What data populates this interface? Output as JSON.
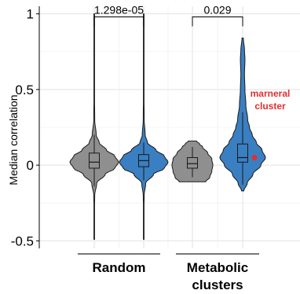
{
  "chart_data": {
    "type": "violin",
    "ylabel": "Median correlation",
    "ylim": [
      -0.55,
      1.05
    ],
    "yticks": [
      -0.5,
      0,
      0.5,
      1
    ],
    "ytick_labels": [
      "-0.5",
      "0",
      "0.5",
      "1"
    ],
    "grid": true,
    "colors": {
      "gray": "#8f8f8f",
      "blue": "#3a7fc1",
      "annotation": "#e03030"
    },
    "violins": [
      {
        "id": "random-gray",
        "group": "Random",
        "color": "#8f8f8f",
        "min": -0.49,
        "max": 1.0,
        "box": {
          "q1": -0.02,
          "median": 0.02,
          "q3": 0.08
        },
        "whisker": [
          -0.14,
          0.2
        ],
        "profile": [
          [
            -0.49,
            0.001
          ],
          [
            -0.4,
            0.003
          ],
          [
            -0.3,
            0.006
          ],
          [
            -0.2,
            0.02
          ],
          [
            -0.12,
            0.1
          ],
          [
            -0.06,
            0.45
          ],
          [
            -0.02,
            0.85
          ],
          [
            0.02,
            1.0
          ],
          [
            0.06,
            0.85
          ],
          [
            0.1,
            0.5
          ],
          [
            0.15,
            0.2
          ],
          [
            0.2,
            0.08
          ],
          [
            0.3,
            0.02
          ],
          [
            0.5,
            0.007
          ],
          [
            0.7,
            0.004
          ],
          [
            1.0,
            0.001
          ]
        ]
      },
      {
        "id": "random-blue",
        "group": "Random",
        "color": "#3a7fc1",
        "min": -0.49,
        "max": 1.0,
        "box": {
          "q1": -0.01,
          "median": 0.03,
          "q3": 0.07
        },
        "whisker": [
          -0.1,
          0.15
        ],
        "profile": [
          [
            -0.49,
            0.001
          ],
          [
            -0.4,
            0.003
          ],
          [
            -0.3,
            0.006
          ],
          [
            -0.2,
            0.02
          ],
          [
            -0.12,
            0.08
          ],
          [
            -0.06,
            0.4
          ],
          [
            -0.02,
            0.85
          ],
          [
            0.02,
            1.0
          ],
          [
            0.06,
            0.85
          ],
          [
            0.1,
            0.5
          ],
          [
            0.15,
            0.15
          ],
          [
            0.2,
            0.06
          ],
          [
            0.3,
            0.02
          ],
          [
            0.5,
            0.007
          ],
          [
            0.7,
            0.004
          ],
          [
            1.0,
            0.001
          ]
        ]
      },
      {
        "id": "metabolic-gray",
        "group": "Metabolic clusters",
        "color": "#8f8f8f",
        "min": -0.11,
        "max": 0.16,
        "box": {
          "q1": -0.02,
          "median": 0.01,
          "q3": 0.05
        },
        "whisker": [
          -0.08,
          0.12
        ],
        "profile": [
          [
            -0.11,
            0.65
          ],
          [
            -0.08,
            0.85
          ],
          [
            -0.04,
            0.95
          ],
          [
            0,
            1.0
          ],
          [
            0.04,
            0.95
          ],
          [
            0.08,
            0.75
          ],
          [
            0.12,
            0.5
          ],
          [
            0.14,
            0.35
          ],
          [
            0.16,
            0.2
          ]
        ]
      },
      {
        "id": "metabolic-blue",
        "group": "Metabolic clusters",
        "color": "#3a7fc1",
        "min": -0.17,
        "max": 0.84,
        "box": {
          "q1": 0.02,
          "median": 0.05,
          "q3": 0.14
        },
        "whisker": [
          -0.13,
          0.35
        ],
        "highlight": {
          "y": 0.05,
          "label": [
            "marneral",
            "cluster"
          ]
        },
        "profile": [
          [
            -0.17,
            0.05
          ],
          [
            -0.12,
            0.2
          ],
          [
            -0.06,
            0.45
          ],
          [
            0,
            0.8
          ],
          [
            0.05,
            1.0
          ],
          [
            0.1,
            0.85
          ],
          [
            0.15,
            0.6
          ],
          [
            0.2,
            0.42
          ],
          [
            0.25,
            0.3
          ],
          [
            0.3,
            0.22
          ],
          [
            0.4,
            0.14
          ],
          [
            0.5,
            0.1
          ],
          [
            0.6,
            0.08
          ],
          [
            0.7,
            0.1
          ],
          [
            0.76,
            0.08
          ],
          [
            0.84,
            0.03
          ]
        ]
      }
    ],
    "comparisons": [
      {
        "label": "1.298e-05",
        "from": "random-gray",
        "to": "random-blue",
        "y": 0.98
      },
      {
        "label": "0.029",
        "from": "metabolic-gray",
        "to": "metabolic-blue",
        "y": 0.98
      }
    ],
    "groups": [
      {
        "lines": [
          "Random"
        ],
        "members": [
          "random-gray",
          "random-blue"
        ]
      },
      {
        "lines": [
          "Metabolic",
          "clusters"
        ],
        "members": [
          "metabolic-gray",
          "metabolic-blue"
        ]
      }
    ]
  }
}
